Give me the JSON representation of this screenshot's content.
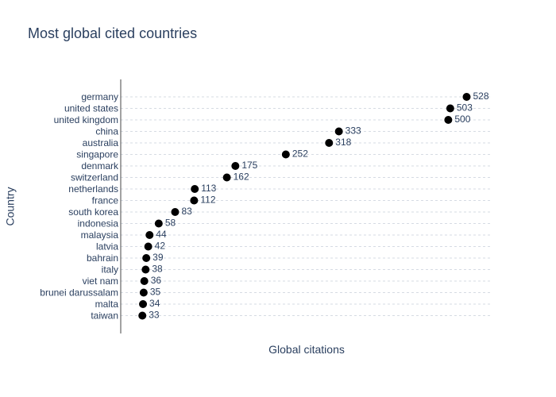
{
  "chart_data": {
    "type": "scatter",
    "title": "Most global cited countries",
    "xlabel": "Global citations",
    "ylabel": "Country",
    "categories": [
      "germany",
      "united states",
      "united kingdom",
      "china",
      "australia",
      "singapore",
      "denmark",
      "switzerland",
      "netherlands",
      "france",
      "south korea",
      "indonesia",
      "malaysia",
      "latvia",
      "bahrain",
      "italy",
      "viet nam",
      "brunei darussalam",
      "malta",
      "taiwan"
    ],
    "values": [
      528,
      503,
      500,
      333,
      318,
      252,
      175,
      162,
      113,
      112,
      83,
      58,
      44,
      42,
      39,
      38,
      36,
      35,
      34,
      33
    ],
    "xlim": [
      0,
      565
    ],
    "marker_color": "#000000",
    "grid": "horizontal dashed",
    "show_x_tick_labels": false,
    "legend": "none"
  }
}
